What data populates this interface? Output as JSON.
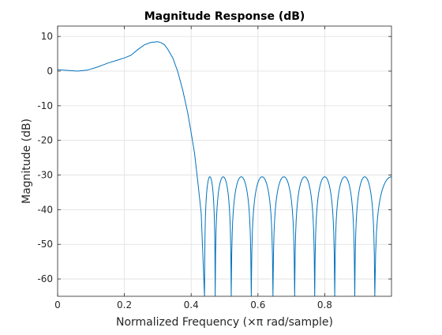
{
  "chart_data": {
    "type": "line",
    "title": "Magnitude Response (dB)",
    "xlabel": "Normalized Frequency (×π rad/sample)",
    "ylabel": "Magnitude (dB)",
    "xlim": [
      0,
      1
    ],
    "ylim": [
      -65,
      13
    ],
    "grid": true,
    "xticks": [
      0,
      0.2,
      0.4,
      0.6,
      0.8
    ],
    "xtick_labels": [
      "0",
      "0.2",
      "0.4",
      "0.6",
      "0.8"
    ],
    "yticks": [
      10,
      0,
      -10,
      -20,
      -30,
      -40,
      -50,
      -60
    ],
    "ytick_labels": [
      "10",
      "0",
      "-10",
      "-20",
      "-30",
      "-40",
      "-50",
      "-60"
    ],
    "line_color": "#0072bd",
    "passband": {
      "x": [
        0.0,
        0.03,
        0.06,
        0.09,
        0.12,
        0.15,
        0.18,
        0.2,
        0.22,
        0.24,
        0.26,
        0.28,
        0.3,
        0.31,
        0.32,
        0.33,
        0.345,
        0.36,
        0.375,
        0.39,
        0.4,
        0.41,
        0.42,
        0.43,
        0.44
      ],
      "y": [
        0.4,
        0.2,
        0.0,
        0.3,
        1.2,
        2.3,
        3.2,
        3.8,
        4.6,
        6.2,
        7.6,
        8.3,
        8.5,
        8.2,
        7.6,
        6.3,
        3.8,
        -0.2,
        -5.6,
        -12.2,
        -17.8,
        -23.6,
        -32.0,
        -41.0,
        -65.0
      ]
    },
    "stopband": {
      "nulls": [
        0.44,
        0.472,
        0.52,
        0.58,
        0.645,
        0.71,
        0.77,
        0.83,
        0.89,
        0.95
      ],
      "lobe_peaks": [
        -30.5,
        -30.5,
        -30.5,
        -30.5,
        -30.5,
        -30.5,
        -30.5,
        -30.5,
        -30.5,
        -30.5
      ],
      "final_x": 1.0,
      "final_y": -30.5
    }
  }
}
